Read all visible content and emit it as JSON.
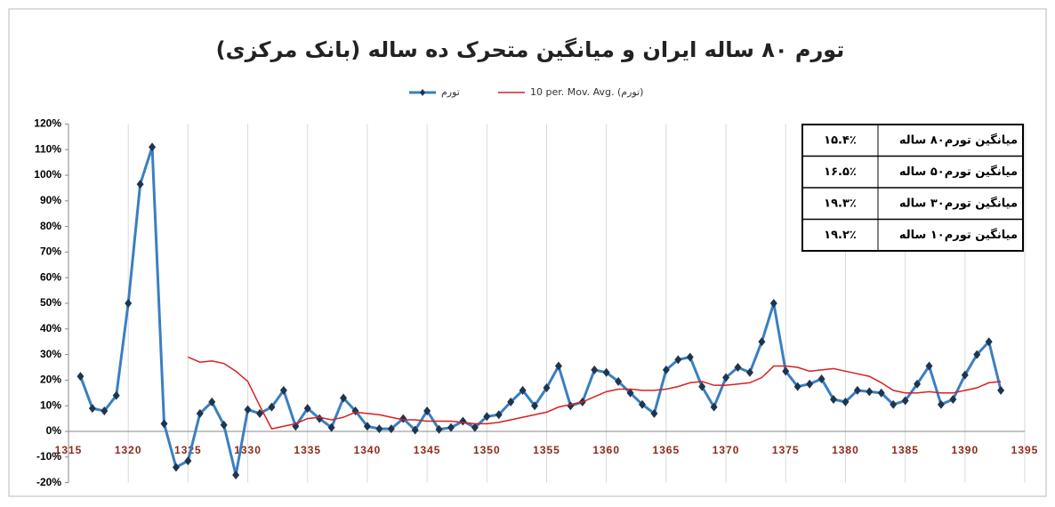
{
  "chart_data": {
    "type": "line",
    "title": "تورم ۸۰ ساله ایران و میانگین متحرک ده ساله (بانک مرکزی)",
    "x": [
      1316,
      1317,
      1318,
      1319,
      1320,
      1321,
      1322,
      1323,
      1324,
      1325,
      1326,
      1327,
      1328,
      1329,
      1330,
      1331,
      1332,
      1333,
      1334,
      1335,
      1336,
      1337,
      1338,
      1339,
      1340,
      1341,
      1342,
      1343,
      1344,
      1345,
      1346,
      1347,
      1348,
      1349,
      1350,
      1351,
      1352,
      1353,
      1354,
      1355,
      1356,
      1357,
      1358,
      1359,
      1360,
      1361,
      1362,
      1363,
      1364,
      1365,
      1366,
      1367,
      1368,
      1369,
      1370,
      1371,
      1372,
      1373,
      1374,
      1375,
      1376,
      1377,
      1378,
      1379,
      1380,
      1381,
      1382,
      1383,
      1384,
      1385,
      1386,
      1387,
      1388,
      1389,
      1390,
      1391,
      1392,
      1393
    ],
    "series": [
      {
        "name": "تورم",
        "color": "#3a7fc1",
        "marker": "diamond",
        "values": [
          21.5,
          9,
          8,
          14,
          50,
          96.5,
          111,
          3,
          -14,
          -11.5,
          7,
          11.5,
          2.5,
          -17,
          8.5,
          7,
          9.5,
          16,
          2,
          9,
          5,
          1.5,
          13,
          8,
          2,
          1,
          1,
          5,
          0.5,
          8,
          0.8,
          1.5,
          4,
          1.5,
          5.8,
          6.5,
          11.5,
          16,
          10,
          17,
          25.5,
          10,
          11.5,
          24,
          23,
          19.5,
          15,
          10.5,
          7,
          24,
          28,
          29,
          17.5,
          9.5,
          21,
          25,
          23,
          35,
          50,
          23.5,
          17.5,
          18.5,
          20.5,
          12.5,
          11.5,
          16,
          15.5,
          15,
          10.5,
          12,
          18.5,
          25.5,
          10.5,
          12.5,
          22,
          30,
          35,
          16
        ]
      },
      {
        "name": "10 per. Mov. Avg. (تورم)",
        "color": "#d62020",
        "values": [
          null,
          null,
          null,
          null,
          null,
          null,
          null,
          null,
          null,
          29,
          27,
          27.5,
          26.5,
          23.5,
          19.5,
          10,
          1,
          2,
          3,
          5,
          5.5,
          4.5,
          5.5,
          7.5,
          7,
          6.5,
          5.5,
          4.5,
          4.5,
          4,
          4,
          4,
          3.5,
          3,
          3,
          3.5,
          4.5,
          5.5,
          6.5,
          7.5,
          9.5,
          10.5,
          11.5,
          13.5,
          15.5,
          16.5,
          16.5,
          16,
          16,
          16.5,
          17.5,
          19,
          19.5,
          18,
          18,
          18.5,
          19,
          21,
          25.5,
          25.5,
          25,
          23.5,
          24,
          24.5,
          23.5,
          22.5,
          21.5,
          19,
          16,
          15,
          15,
          15.5,
          15,
          15,
          16,
          17,
          19,
          19.5
        ]
      }
    ],
    "xlim": [
      1315,
      1395
    ],
    "xticks": [
      1315,
      1320,
      1325,
      1330,
      1335,
      1340,
      1345,
      1350,
      1355,
      1360,
      1365,
      1370,
      1375,
      1380,
      1385,
      1390,
      1395
    ],
    "ylim": [
      -20,
      120
    ],
    "yticks": [
      {
        "value": -20,
        "label": "-20%"
      },
      {
        "value": -10,
        "label": "-10%"
      },
      {
        "value": 0,
        "label": "0%"
      },
      {
        "value": 10,
        "label": "10%"
      },
      {
        "value": 20,
        "label": "20%"
      },
      {
        "value": 30,
        "label": "30%"
      },
      {
        "value": 40,
        "label": "40%"
      },
      {
        "value": 50,
        "label": "50%"
      },
      {
        "value": 60,
        "label": "60%"
      },
      {
        "value": 70,
        "label": "70%"
      },
      {
        "value": 80,
        "label": "80%"
      },
      {
        "value": 90,
        "label": "90%"
      },
      {
        "value": 100,
        "label": "100%"
      },
      {
        "value": 110,
        "label": "110%"
      },
      {
        "value": 120,
        "label": "120%"
      }
    ],
    "grid": "x",
    "legend": "top",
    "table": {
      "rows": [
        [
          "میانگین تورم۸۰ ساله",
          "۱۵.۴٪"
        ],
        [
          "میانگین تورم۵۰ ساله",
          "۱۶.۵٪"
        ],
        [
          "میانگین تورم۳۰ ساله",
          "۱۹.۳٪"
        ],
        [
          "میانگین تورم۱۰ ساله",
          "۱۹.۲٪"
        ]
      ]
    }
  }
}
